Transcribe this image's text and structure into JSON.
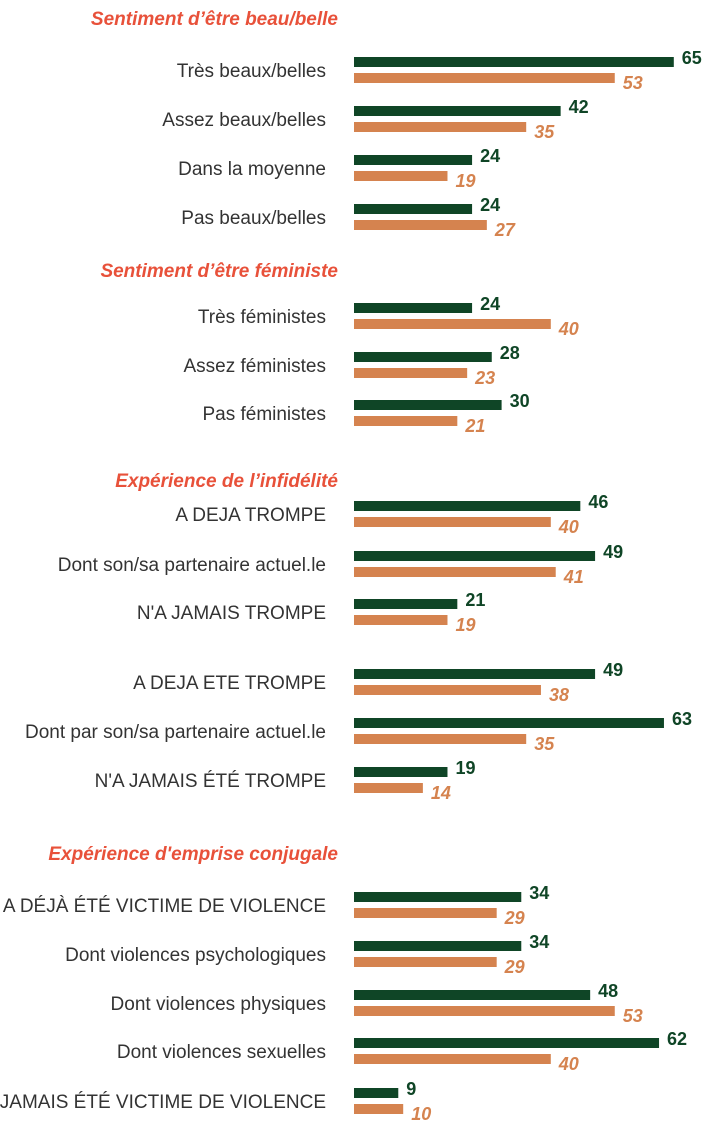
{
  "chart_data": [
    {
      "type": "bar",
      "title": "Sentiment d’être beau/belle",
      "categories": [
        "Très beaux/belles",
        "Assez beaux/belles",
        "Dans la moyenne",
        "Pas beaux/belles"
      ],
      "series": [
        {
          "color": "#0f4526",
          "values": [
            65,
            42,
            24,
            24
          ]
        },
        {
          "color": "#d5834f",
          "values": [
            53,
            35,
            19,
            27
          ]
        }
      ]
    },
    {
      "type": "bar",
      "title": "Sentiment d’être féministe",
      "categories": [
        "Très féministes",
        "Assez féministes",
        "Pas féministes"
      ],
      "series": [
        {
          "color": "#0f4526",
          "values": [
            24,
            28,
            30
          ]
        },
        {
          "color": "#d5834f",
          "values": [
            40,
            23,
            21
          ]
        }
      ]
    },
    {
      "type": "bar",
      "title": "Expérience de l’infidélité",
      "categories": [
        "A DEJA TROMPE",
        "Dont son/sa partenaire actuel.le",
        "N'A JAMAIS TROMPE"
      ],
      "series": [
        {
          "color": "#0f4526",
          "values": [
            46,
            49,
            21
          ]
        },
        {
          "color": "#d5834f",
          "values": [
            40,
            41,
            19
          ]
        }
      ]
    },
    {
      "type": "bar",
      "categories": [
        "A DEJA ETE TROMPE",
        "Dont par son/sa partenaire actuel.le",
        "N'A JAMAIS ÉTÉ TROMPE"
      ],
      "series": [
        {
          "color": "#0f4526",
          "values": [
            49,
            63,
            19
          ]
        },
        {
          "color": "#d5834f",
          "values": [
            38,
            35,
            14
          ]
        }
      ]
    },
    {
      "type": "bar",
      "title": "Expérience d'emprise conjugale",
      "categories": [
        "A DÉJÀ ÉTÉ VICTIME DE VIOLENCE",
        "Dont violences psychologiques",
        "Dont violences physiques",
        "Dont violences sexuelles",
        "N'A JAMAIS ÉTÉ VICTIME DE VIOLENCE"
      ],
      "series": [
        {
          "color": "#0f4526",
          "values": [
            34,
            34,
            48,
            62,
            9
          ]
        },
        {
          "color": "#d5834f",
          "values": [
            29,
            29,
            53,
            40,
            10
          ]
        }
      ]
    }
  ]
}
